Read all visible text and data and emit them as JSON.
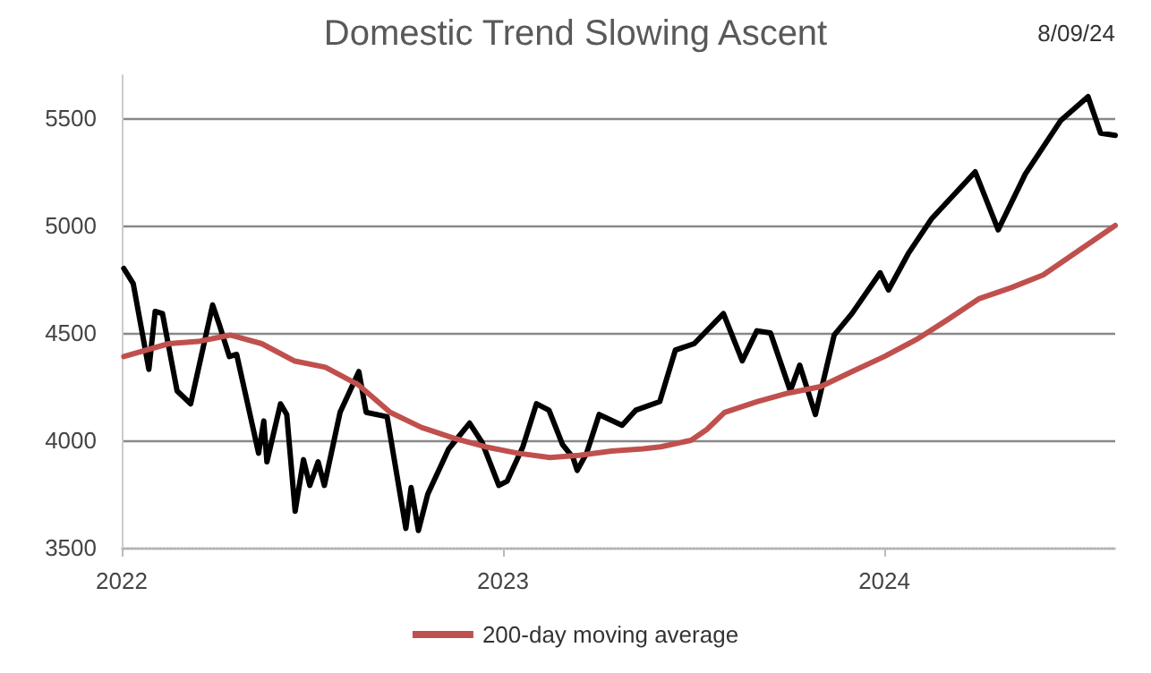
{
  "chart_data": {
    "type": "line",
    "title": "Domestic Trend Slowing Ascent",
    "annotations": [
      "8/09/24"
    ],
    "xlim": [
      "2022-01-01",
      "2024-08-09"
    ],
    "xticks": [
      "2022",
      "2023",
      "2024"
    ],
    "ylim": [
      3500,
      5700
    ],
    "yticks": [
      3500,
      4000,
      4500,
      5000,
      5500
    ],
    "grid": "y",
    "legend": "bottom",
    "marker": "none",
    "line_style": "solid",
    "series": [
      {
        "color": "#000000",
        "x": [
          "2022-01-03",
          "2022-01-12",
          "2022-01-27",
          "2022-02-02",
          "2022-02-09",
          "2022-02-23",
          "2022-03-08",
          "2022-03-29",
          "2022-04-05",
          "2022-04-14",
          "2022-04-21",
          "2022-05-02",
          "2022-05-12",
          "2022-05-17",
          "2022-05-20",
          "2022-06-02",
          "2022-06-08",
          "2022-06-16",
          "2022-06-24",
          "2022-06-30",
          "2022-07-08",
          "2022-07-14",
          "2022-07-29",
          "2022-08-16",
          "2022-08-23",
          "2022-09-12",
          "2022-09-30",
          "2022-10-05",
          "2022-10-12",
          "2022-10-21",
          "2022-11-10",
          "2022-11-30",
          "2022-12-12",
          "2022-12-28",
          "2023-01-05",
          "2023-01-20",
          "2023-02-02",
          "2023-02-14",
          "2023-02-27",
          "2023-03-09",
          "2023-03-13",
          "2023-03-22",
          "2023-04-03",
          "2023-04-25",
          "2023-05-08",
          "2023-05-31",
          "2023-06-15",
          "2023-07-03",
          "2023-07-31",
          "2023-08-18",
          "2023-09-01",
          "2023-09-14",
          "2023-10-03",
          "2023-10-12",
          "2023-10-27",
          "2023-11-14",
          "2023-12-01",
          "2023-12-28",
          "2024-01-05",
          "2024-01-24",
          "2024-02-15",
          "2024-03-28",
          "2024-04-19",
          "2024-05-15",
          "2024-06-18",
          "2024-07-14",
          "2024-07-26",
          "2024-08-09"
        ],
        "values": [
          4800,
          4730,
          4330,
          4600,
          4590,
          4230,
          4170,
          4630,
          4530,
          4390,
          4400,
          4160,
          3940,
          4090,
          3900,
          4170,
          4120,
          3670,
          3910,
          3790,
          3900,
          3790,
          4130,
          4320,
          4130,
          4110,
          3590,
          3780,
          3580,
          3750,
          3960,
          4080,
          3990,
          3790,
          3810,
          3970,
          4170,
          4140,
          3980,
          3920,
          3860,
          3940,
          4120,
          4070,
          4140,
          4180,
          4420,
          4450,
          4590,
          4370,
          4510,
          4500,
          4230,
          4350,
          4120,
          4490,
          4590,
          4780,
          4700,
          4870,
          5030,
          5250,
          4980,
          5240,
          5490,
          5600,
          5430,
          5420
        ]
      },
      {
        "name": "200-day moving average",
        "color": "#c0504d",
        "x": [
          "2022-01-03",
          "2022-02-15",
          "2022-03-15",
          "2022-04-15",
          "2022-05-15",
          "2022-06-15",
          "2022-07-15",
          "2022-08-15",
          "2022-09-15",
          "2022-10-15",
          "2022-11-15",
          "2022-12-15",
          "2023-01-15",
          "2023-02-15",
          "2023-03-15",
          "2023-04-15",
          "2023-05-15",
          "2023-06-01",
          "2023-06-30",
          "2023-07-15",
          "2023-08-01",
          "2023-09-01",
          "2023-10-01",
          "2023-11-01",
          "2023-12-01",
          "2024-01-01",
          "2024-02-01",
          "2024-03-01",
          "2024-04-01",
          "2024-05-01",
          "2024-06-01",
          "2024-07-01",
          "2024-08-09"
        ],
        "values": [
          4390,
          4450,
          4460,
          4490,
          4450,
          4370,
          4340,
          4260,
          4130,
          4060,
          4010,
          3970,
          3940,
          3920,
          3930,
          3950,
          3960,
          3970,
          4000,
          4050,
          4130,
          4180,
          4220,
          4250,
          4320,
          4390,
          4470,
          4560,
          4660,
          4710,
          4770,
          4870,
          5000
        ]
      }
    ]
  }
}
